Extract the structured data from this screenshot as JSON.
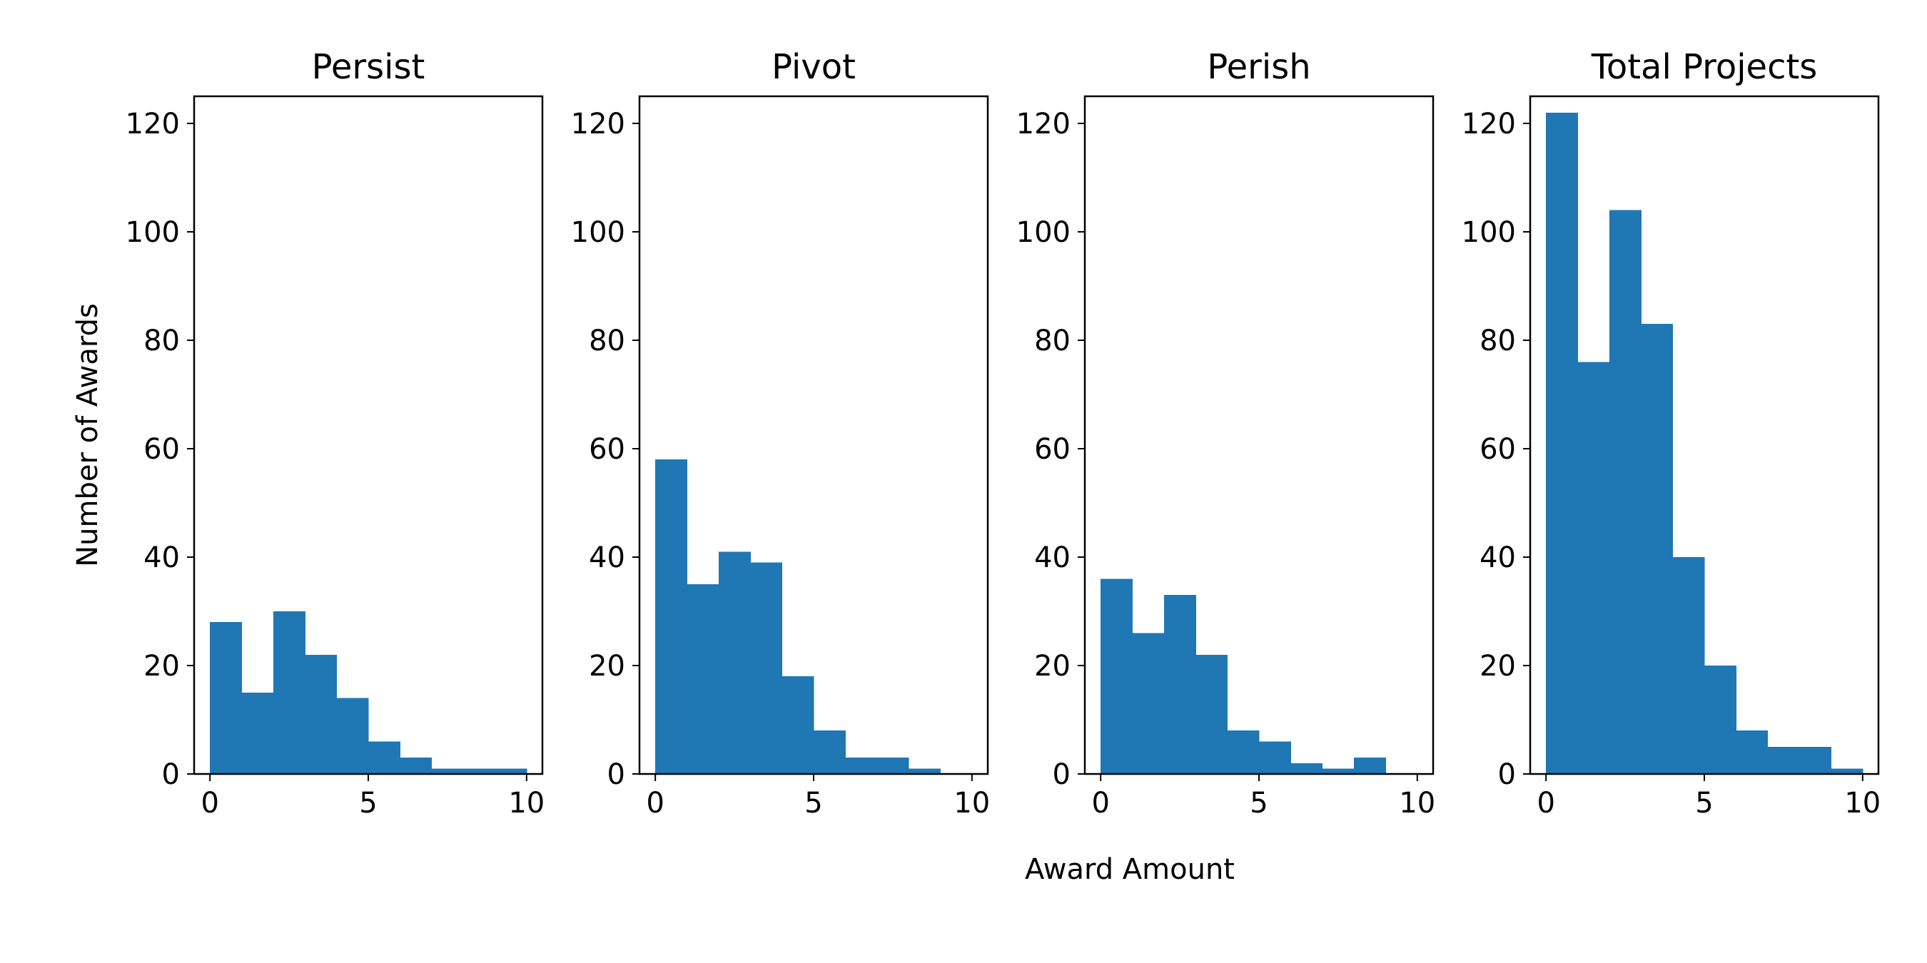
{
  "figure": {
    "xlabel": "Award Amount",
    "ylabel": "Number of Awards"
  },
  "chart_data": [
    {
      "type": "bar",
      "title": "Persist",
      "bin_edges": [
        0,
        1,
        2,
        3,
        4,
        5,
        6,
        7,
        8,
        9,
        10
      ],
      "values": [
        28,
        15,
        30,
        22,
        14,
        6,
        3,
        1,
        1,
        1
      ],
      "xlim": [
        -0.5,
        10.5
      ],
      "ylim": [
        0,
        125
      ],
      "xticks": [
        0,
        5,
        10
      ],
      "yticks": [
        0,
        20,
        40,
        60,
        80,
        100,
        120
      ],
      "color": "#1f77b4",
      "grid": false
    },
    {
      "type": "bar",
      "title": "Pivot",
      "bin_edges": [
        0,
        1,
        2,
        3,
        4,
        5,
        6,
        7,
        8,
        9,
        10
      ],
      "values": [
        58,
        35,
        41,
        39,
        18,
        8,
        3,
        3,
        1,
        0
      ],
      "xlim": [
        -0.5,
        10.5
      ],
      "ylim": [
        0,
        125
      ],
      "xticks": [
        0,
        5,
        10
      ],
      "yticks": [
        0,
        20,
        40,
        60,
        80,
        100,
        120
      ],
      "color": "#1f77b4",
      "grid": false
    },
    {
      "type": "bar",
      "title": "Perish",
      "bin_edges": [
        0,
        1,
        2,
        3,
        4,
        5,
        6,
        7,
        8,
        9,
        10
      ],
      "values": [
        36,
        26,
        33,
        22,
        8,
        6,
        2,
        1,
        3,
        0
      ],
      "xlim": [
        -0.5,
        10.5
      ],
      "ylim": [
        0,
        125
      ],
      "xticks": [
        0,
        5,
        10
      ],
      "yticks": [
        0,
        20,
        40,
        60,
        80,
        100,
        120
      ],
      "color": "#1f77b4",
      "grid": false
    },
    {
      "type": "bar",
      "title": "Total Projects",
      "bin_edges": [
        0,
        1,
        2,
        3,
        4,
        5,
        6,
        7,
        8,
        9,
        10
      ],
      "values": [
        122,
        76,
        104,
        83,
        40,
        20,
        8,
        5,
        5,
        1
      ],
      "xlim": [
        -0.5,
        10.5
      ],
      "ylim": [
        0,
        125
      ],
      "xticks": [
        0,
        5,
        10
      ],
      "yticks": [
        0,
        20,
        40,
        60,
        80,
        100,
        120
      ],
      "color": "#1f77b4",
      "grid": false
    }
  ]
}
